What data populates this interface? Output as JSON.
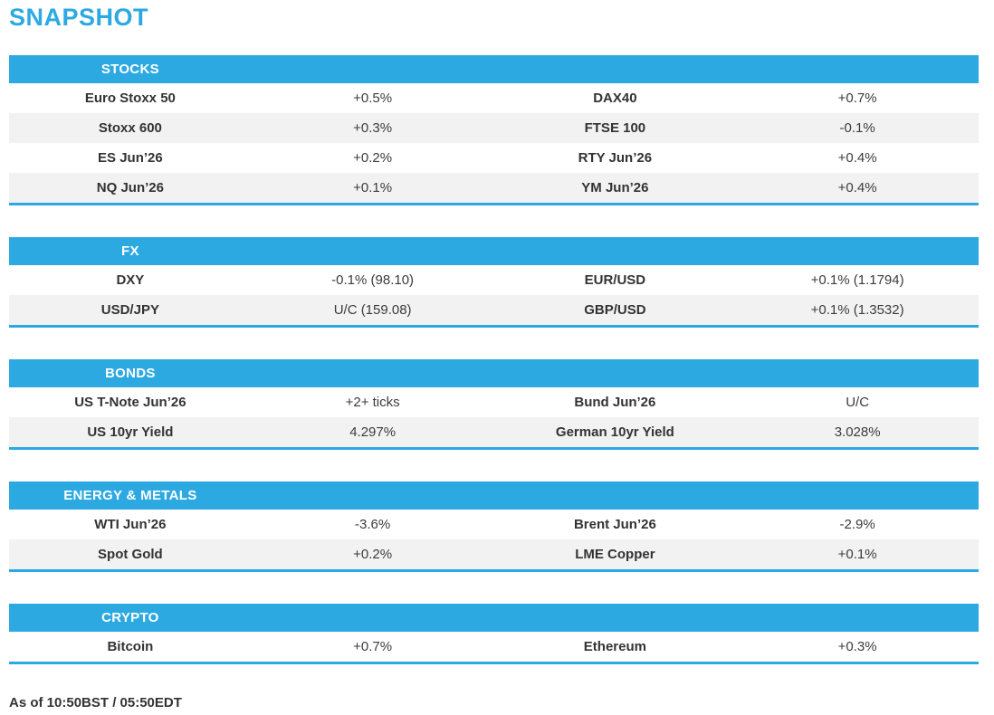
{
  "title": "SNAPSHOT",
  "footer": "As of 10:50BST / 05:50EDT",
  "colors": {
    "accent": "#2DA9E2",
    "row_stripe": "#F2F2F3",
    "header_text": "#FFFFFF",
    "text": "#333333"
  },
  "sections": [
    {
      "title": "STOCKS",
      "rows": [
        [
          "Euro Stoxx 50",
          "+0.5%",
          "DAX40",
          "+0.7%"
        ],
        [
          "Stoxx 600",
          "+0.3%",
          "FTSE 100",
          "-0.1%"
        ],
        [
          "ES Jun’26",
          "+0.2%",
          "RTY Jun’26",
          "+0.4%"
        ],
        [
          "NQ Jun’26",
          "+0.1%",
          "YM Jun’26",
          "+0.4%"
        ]
      ]
    },
    {
      "title": "FX",
      "rows": [
        [
          "DXY",
          "-0.1% (98.10)",
          "EUR/USD",
          "+0.1% (1.1794)"
        ],
        [
          "USD/JPY",
          "U/C (159.08)",
          "GBP/USD",
          "+0.1% (1.3532)"
        ]
      ]
    },
    {
      "title": "BONDS",
      "rows": [
        [
          "US T-Note Jun’26",
          "+2+ ticks",
          "Bund Jun’26",
          "U/C"
        ],
        [
          "US 10yr Yield",
          "4.297%",
          "German 10yr Yield",
          "3.028%"
        ]
      ]
    },
    {
      "title": "ENERGY & METALS",
      "rows": [
        [
          "WTI Jun’26",
          "-3.6%",
          "Brent Jun’26",
          "-2.9%"
        ],
        [
          "Spot Gold",
          "+0.2%",
          "LME Copper",
          "+0.1%"
        ]
      ]
    },
    {
      "title": "CRYPTO",
      "rows": [
        [
          "Bitcoin",
          "+0.7%",
          "Ethereum",
          "+0.3%"
        ]
      ]
    }
  ]
}
